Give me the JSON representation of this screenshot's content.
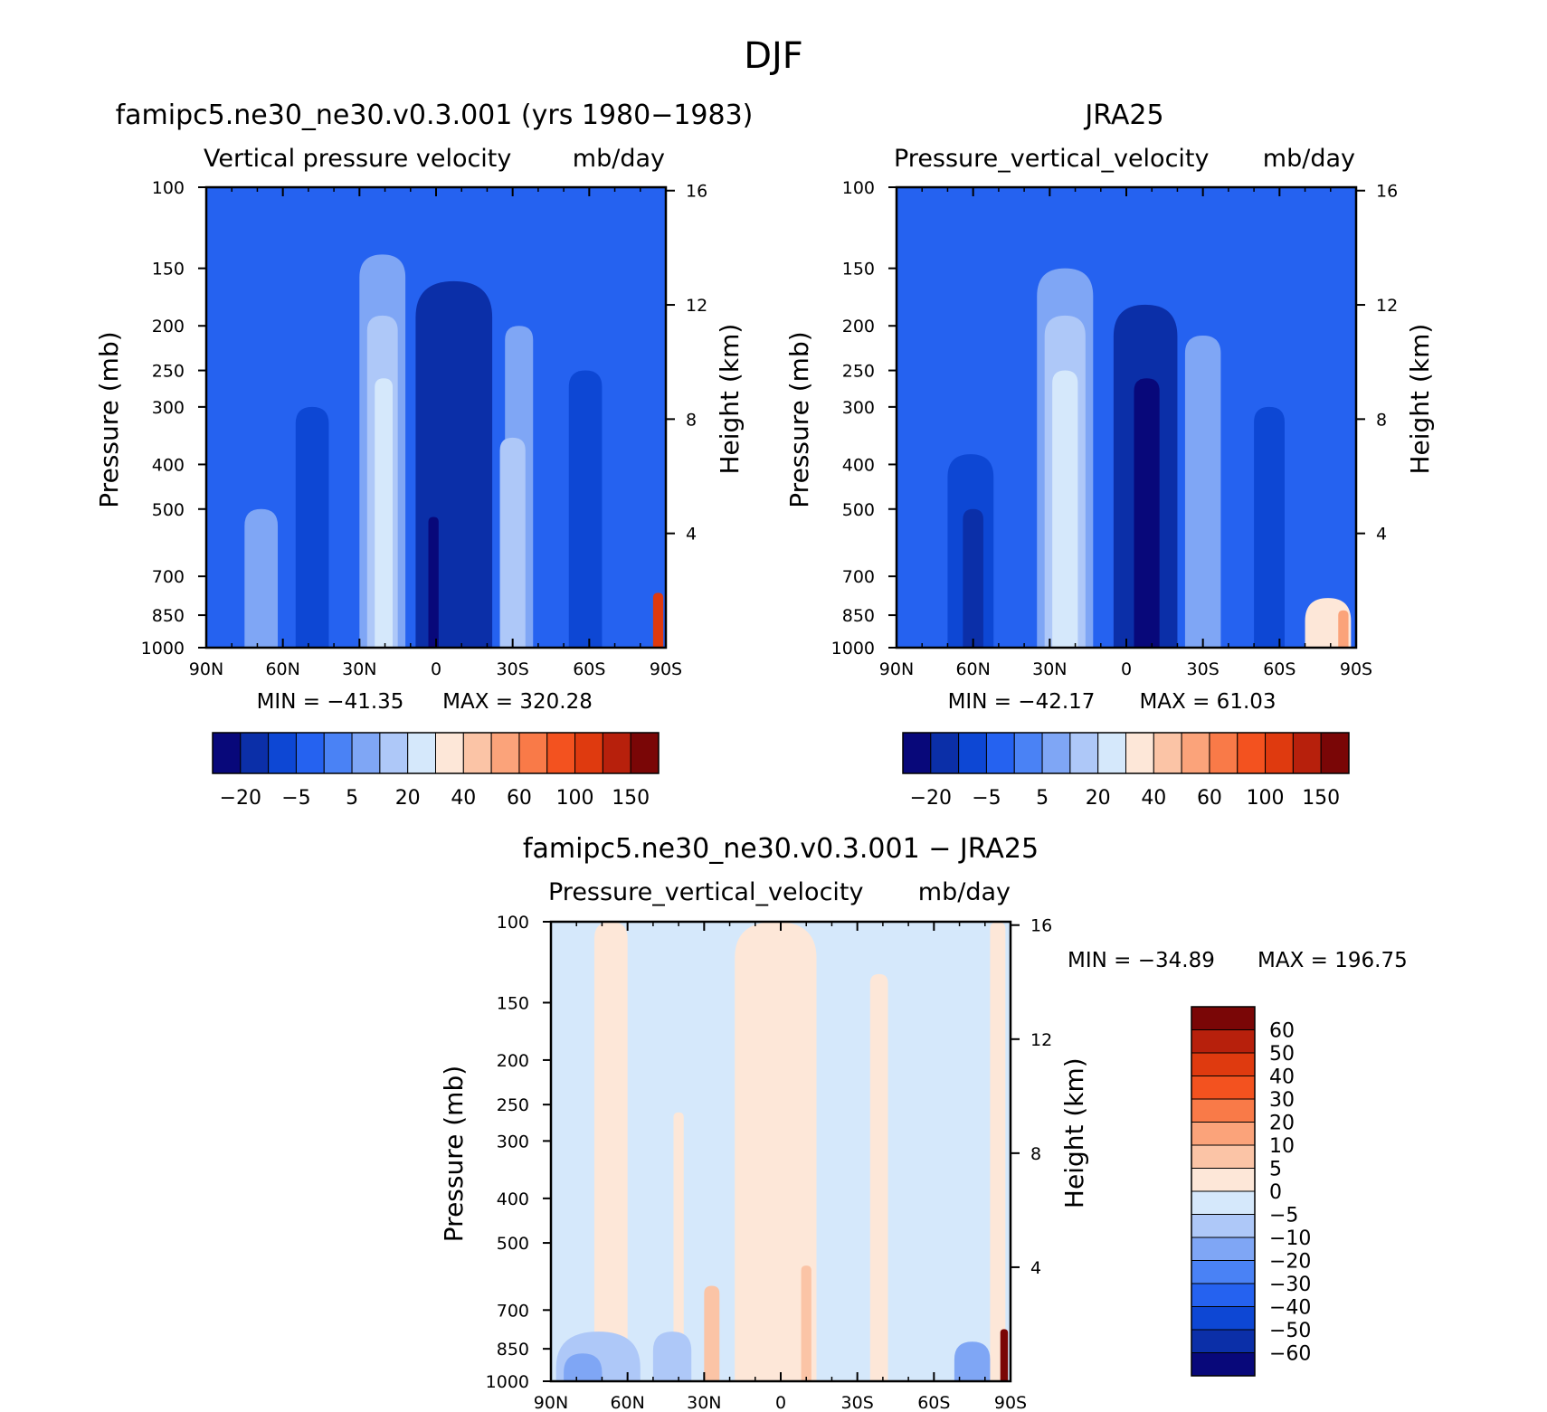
{
  "figure": {
    "title": "DJF"
  },
  "colors": {
    "main_palette": [
      "#08087a",
      "#0b2fa8",
      "#0d47d4",
      "#2562f0",
      "#4a82f5",
      "#7fa6f5",
      "#aec8f8",
      "#d5e8fb",
      "#fde7d8",
      "#fbc4a6",
      "#fba37a",
      "#f97a48",
      "#f3521f",
      "#df3a0f",
      "#b7200c",
      "#7a0606"
    ],
    "diff_palette": [
      "#08087a",
      "#0b2fa8",
      "#0d47d4",
      "#2562f0",
      "#4a82f5",
      "#7fa6f5",
      "#aec8f8",
      "#d5e8fb",
      "#fde7d8",
      "#fbc4a6",
      "#fba37a",
      "#f97a48",
      "#f3521f",
      "#df3a0f",
      "#b7200c",
      "#7a0606"
    ]
  },
  "chart_data": [
    {
      "type": "heatmap",
      "title": "famipc5.ne30_ne30.v0.3.001 (yrs 1980−1983)",
      "subtitle_left": "Vertical pressure velocity",
      "subtitle_right": "mb/day",
      "xlabel": "",
      "ylabel": "Pressure (mb)",
      "y2label": "Height (km)",
      "x_ticks": [
        "90N",
        "60N",
        "30N",
        "0",
        "30S",
        "60S",
        "90S"
      ],
      "y_ticks": [
        100,
        150,
        200,
        250,
        300,
        400,
        500,
        700,
        850,
        1000
      ],
      "y2_ticks": [
        4,
        8,
        12,
        16
      ],
      "ylim": [
        1000,
        100
      ],
      "y_scale": "log",
      "min_label": "MIN = −41.35",
      "max_label": "MAX = 320.28",
      "colorbar_labels": [
        "−20",
        "−5",
        "5",
        "20",
        "40",
        "60",
        "100",
        "150"
      ],
      "background_level": 3,
      "bands": [
        {
          "lat_from": 75,
          "lat_to": 62,
          "top": 500,
          "level": 5
        },
        {
          "lat_from": 55,
          "lat_to": 42,
          "top": 300,
          "level": 2
        },
        {
          "lat_from": 30,
          "lat_to": 12,
          "top": 140,
          "level": 5
        },
        {
          "lat_from": 27,
          "lat_to": 15,
          "top": 190,
          "level": 6
        },
        {
          "lat_from": 24,
          "lat_to": 17,
          "top": 260,
          "level": 7
        },
        {
          "lat_from": 8,
          "lat_to": -22,
          "top": 160,
          "level": 1
        },
        {
          "lat_from": 3,
          "lat_to": -1,
          "top": 520,
          "level": 0
        },
        {
          "lat_from": -27,
          "lat_to": -38,
          "top": 200,
          "level": 5
        },
        {
          "lat_from": -25,
          "lat_to": -35,
          "top": 350,
          "level": 6
        },
        {
          "lat_from": -52,
          "lat_to": -65,
          "top": 250,
          "level": 2
        },
        {
          "lat_from": -85,
          "lat_to": -89,
          "top": 760,
          "level": 13
        }
      ]
    },
    {
      "type": "heatmap",
      "title": "JRA25",
      "subtitle_left": "Pressure_vertical_velocity",
      "subtitle_right": "mb/day",
      "xlabel": "",
      "ylabel": "Pressure (mb)",
      "y2label": "Height (km)",
      "x_ticks": [
        "90N",
        "60N",
        "30N",
        "0",
        "30S",
        "60S",
        "90S"
      ],
      "y_ticks": [
        100,
        150,
        200,
        250,
        300,
        400,
        500,
        700,
        850,
        1000
      ],
      "y2_ticks": [
        4,
        8,
        12,
        16
      ],
      "ylim": [
        1000,
        100
      ],
      "y_scale": "log",
      "min_label": "MIN = −42.17",
      "max_label": "MAX =   61.03",
      "colorbar_labels": [
        "−20",
        "−5",
        "5",
        "20",
        "40",
        "60",
        "100",
        "150"
      ],
      "background_level": 3,
      "bands": [
        {
          "lat_from": 70,
          "lat_to": 52,
          "top": 380,
          "level": 2
        },
        {
          "lat_from": 64,
          "lat_to": 56,
          "top": 500,
          "level": 1
        },
        {
          "lat_from": 35,
          "lat_to": 13,
          "top": 150,
          "level": 5
        },
        {
          "lat_from": 32,
          "lat_to": 16,
          "top": 190,
          "level": 6
        },
        {
          "lat_from": 29,
          "lat_to": 19,
          "top": 250,
          "level": 7
        },
        {
          "lat_from": 5,
          "lat_to": -20,
          "top": 180,
          "level": 1
        },
        {
          "lat_from": -3,
          "lat_to": -13,
          "top": 260,
          "level": 0
        },
        {
          "lat_from": -23,
          "lat_to": -37,
          "top": 210,
          "level": 5
        },
        {
          "lat_from": -50,
          "lat_to": -62,
          "top": 300,
          "level": 2
        },
        {
          "lat_from": -70,
          "lat_to": -88,
          "top": 780,
          "level": 8
        },
        {
          "lat_from": -83,
          "lat_to": -87,
          "top": 830,
          "level": 10
        }
      ]
    },
    {
      "type": "heatmap",
      "title": "famipc5.ne30_ne30.v0.3.001 − JRA25",
      "subtitle_left": "Pressure_vertical_velocity",
      "subtitle_right": "mb/day",
      "xlabel": "",
      "ylabel": "Pressure (mb)",
      "y2label": "Height (km)",
      "x_ticks": [
        "90N",
        "60N",
        "30N",
        "0",
        "30S",
        "60S",
        "90S"
      ],
      "y_ticks": [
        100,
        150,
        200,
        250,
        300,
        400,
        500,
        700,
        850,
        1000
      ],
      "y2_ticks": [
        4,
        8,
        12,
        16
      ],
      "ylim": [
        1000,
        100
      ],
      "y_scale": "log",
      "min_label": "MIN = −34.89",
      "max_label": "MAX = 196.75",
      "colorbar_labels": [
        "60",
        "50",
        "40",
        "30",
        "20",
        "10",
        "5",
        "0",
        "−5",
        "−10",
        "−20",
        "−30",
        "−40",
        "−50",
        "−60"
      ],
      "background_level": 7,
      "bands": [
        {
          "lat_from": 73,
          "lat_to": 60,
          "top": 100,
          "level": 8
        },
        {
          "lat_from": 42,
          "lat_to": 38,
          "top": 260,
          "level": 8
        },
        {
          "lat_from": 18,
          "lat_to": -14,
          "top": 100,
          "level": 8
        },
        {
          "lat_from": -35,
          "lat_to": -42,
          "top": 130,
          "level": 8
        },
        {
          "lat_from": -82,
          "lat_to": -88,
          "top": 100,
          "level": 8
        },
        {
          "lat_from": 88,
          "lat_to": 55,
          "top": 780,
          "level": 6
        },
        {
          "lat_from": 85,
          "lat_to": 70,
          "top": 870,
          "level": 5
        },
        {
          "lat_from": 50,
          "lat_to": 35,
          "top": 780,
          "level": 6
        },
        {
          "lat_from": 30,
          "lat_to": 24,
          "top": 620,
          "level": 9
        },
        {
          "lat_from": -8,
          "lat_to": -12,
          "top": 560,
          "level": 9
        },
        {
          "lat_from": -68,
          "lat_to": -82,
          "top": 820,
          "level": 5
        },
        {
          "lat_from": -86,
          "lat_to": -89,
          "top": 770,
          "level": 15
        }
      ]
    }
  ]
}
